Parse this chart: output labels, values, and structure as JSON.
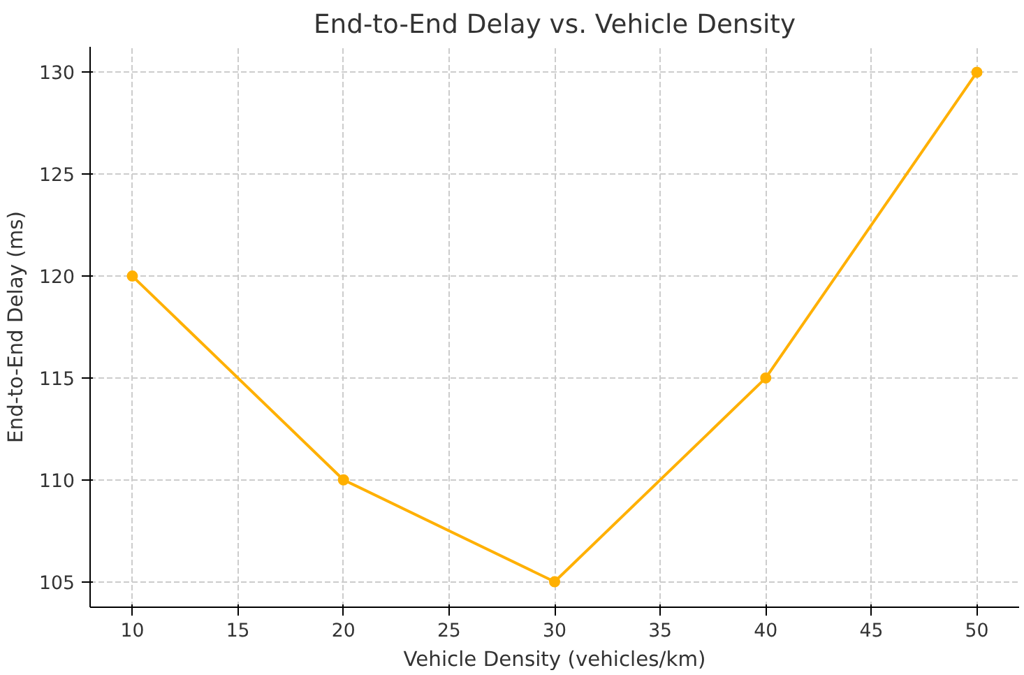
{
  "chart_data": {
    "type": "line",
    "title": "End-to-End Delay vs. Vehicle Density",
    "xlabel": "Vehicle Density (vehicles/km)",
    "ylabel": "End-to-End Delay (ms)",
    "x": [
      10,
      20,
      30,
      40,
      50
    ],
    "series": [
      {
        "color": "#ffb000",
        "values": [
          120,
          110,
          105,
          115,
          130
        ]
      }
    ],
    "xlim": [
      8,
      52
    ],
    "ylim": [
      103.75,
      131.25
    ],
    "xticks": [
      10,
      15,
      20,
      25,
      30,
      35,
      40,
      45,
      50
    ],
    "yticks": [
      105,
      110,
      115,
      120,
      125,
      130
    ],
    "grid": true,
    "marker": "circle",
    "line_style": "solid"
  }
}
